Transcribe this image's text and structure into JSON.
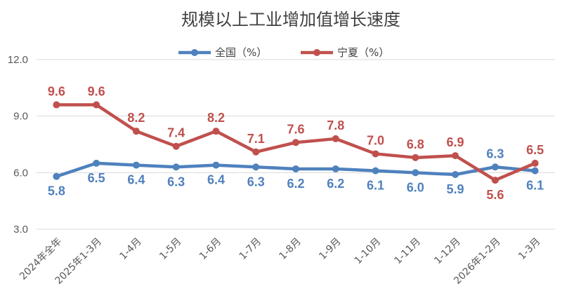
{
  "chart_data": {
    "type": "line",
    "title": "规模以上工业增加值增长速度",
    "categories": [
      "2024年全年",
      "2025年1-3月",
      "1-4月",
      "1-5月",
      "1-6月",
      "1-7月",
      "1-8月",
      "1-9月",
      "1-10月",
      "1-11月",
      "1-12月",
      "2026年1-2月",
      "1-3月"
    ],
    "ylim": [
      3.0,
      12.0
    ],
    "yticks": [
      "3.0",
      "6.0",
      "9.0",
      "12.0"
    ],
    "grid": true,
    "legend_position": "top-center",
    "series": [
      {
        "name": "全国（%）",
        "color": "#4f81bd",
        "values": [
          5.8,
          6.5,
          6.4,
          6.3,
          6.4,
          6.3,
          6.2,
          6.2,
          6.1,
          6.0,
          5.9,
          6.3,
          6.1
        ],
        "labels": [
          "5.8",
          "6.5",
          "6.4",
          "6.3",
          "6.4",
          "6.3",
          "6.2",
          "6.2",
          "6.1",
          "6.0",
          "5.9",
          "6.3",
          "6.1"
        ]
      },
      {
        "name": "宁夏（%）",
        "color": "#c0504d",
        "values": [
          9.6,
          9.6,
          8.2,
          7.4,
          8.2,
          7.1,
          7.6,
          7.8,
          7.0,
          6.8,
          6.9,
          5.6,
          6.5
        ],
        "labels": [
          "9.6",
          "9.6",
          "8.2",
          "7.4",
          "8.2",
          "7.1",
          "7.6",
          "7.8",
          "7.0",
          "6.8",
          "6.9",
          "5.6",
          "6.5"
        ]
      }
    ]
  }
}
